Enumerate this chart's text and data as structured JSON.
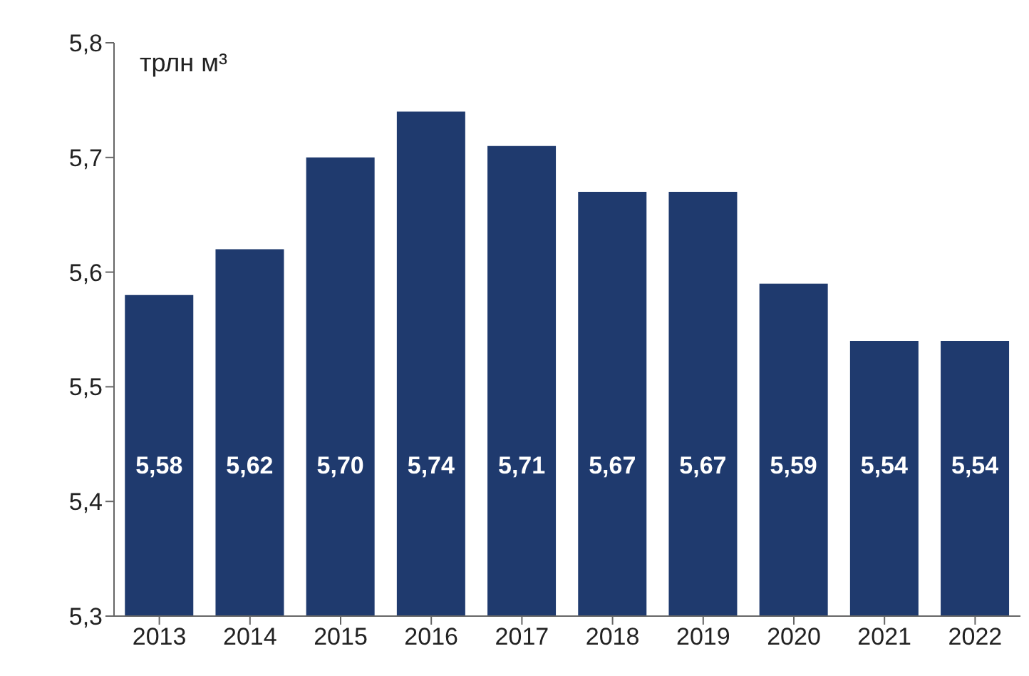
{
  "chart_data": {
    "type": "bar",
    "ylabel": "трлн м³",
    "categories": [
      "2013",
      "2014",
      "2015",
      "2016",
      "2017",
      "2018",
      "2019",
      "2020",
      "2021",
      "2022"
    ],
    "values": [
      5.58,
      5.62,
      5.7,
      5.74,
      5.71,
      5.67,
      5.67,
      5.59,
      5.54,
      5.54
    ],
    "value_labels": [
      "5,58",
      "5,62",
      "5,70",
      "5,74",
      "5,71",
      "5,67",
      "5,67",
      "5,59",
      "5,54",
      "5,54"
    ],
    "color": "#1f3a6e",
    "ylim": [
      5.3,
      5.8
    ],
    "yticks": [
      {
        "value": 5.3,
        "label": "5,3"
      },
      {
        "value": 5.4,
        "label": "5,4"
      },
      {
        "value": 5.5,
        "label": "5,5"
      },
      {
        "value": 5.6,
        "label": "5,6"
      },
      {
        "value": 5.7,
        "label": "5,7"
      },
      {
        "value": 5.8,
        "label": "5,8"
      }
    ],
    "grid": false,
    "legend": false
  }
}
